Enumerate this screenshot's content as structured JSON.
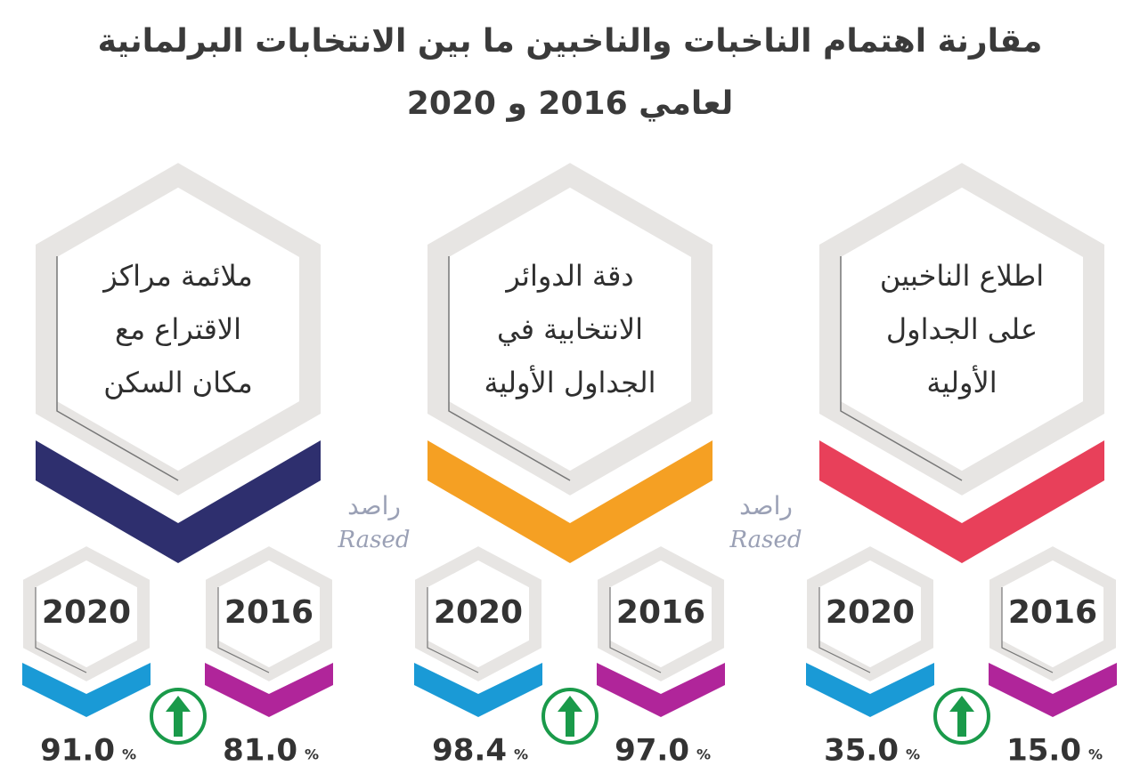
{
  "header": {
    "title_lines": [
      "مقارنة اهتمام الناخبات والناخبين ما بين الانتخابات البرلمانية",
      "لعامي 2016 و 2020"
    ]
  },
  "watermark": {
    "arabic": "راصد",
    "latin": "Rased"
  },
  "panels": [
    {
      "label_lines": [
        "ملائمة مراكز",
        "الاقتراع مع",
        "مكان السكن"
      ],
      "color": "#2e2f6e",
      "years": [
        {
          "year": "2020",
          "value": "91.0",
          "unit": "%"
        },
        {
          "year": "2016",
          "value": "81.0",
          "unit": "%"
        }
      ]
    },
    {
      "label_lines": [
        "دقة الدوائر",
        "الانتخابية في",
        "الجداول الأولية"
      ],
      "color": "#f5a023",
      "years": [
        {
          "year": "2020",
          "value": "98.4",
          "unit": "%"
        },
        {
          "year": "2016",
          "value": "97.0",
          "unit": "%"
        }
      ]
    },
    {
      "label_lines": [
        "اطلاع الناخبين",
        "على الجداول",
        "الأولية"
      ],
      "color": "#e8405a",
      "years": [
        {
          "year": "2020",
          "value": "35.0",
          "unit": "%"
        },
        {
          "year": "2016",
          "value": "15.0",
          "unit": "%"
        }
      ]
    }
  ]
}
